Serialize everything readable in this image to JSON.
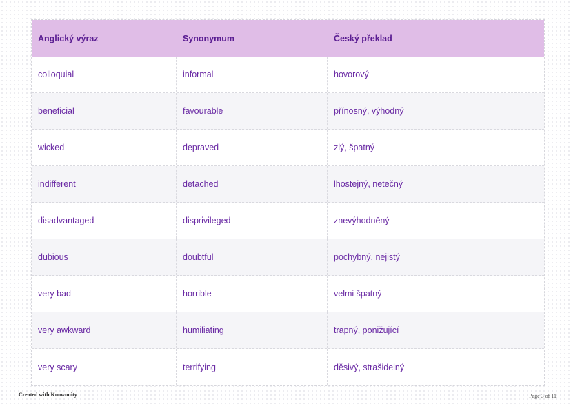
{
  "table": {
    "headers": [
      "Anglický výraz",
      "Synonymum",
      "Český překlad"
    ],
    "rows": [
      [
        "colloquial",
        "informal",
        "hovorový"
      ],
      [
        "beneficial",
        "favourable",
        "přínosný, výhodný"
      ],
      [
        "wicked",
        "depraved",
        "zlý, špatný"
      ],
      [
        "indifferent",
        "detached",
        "lhostejný, netečný"
      ],
      [
        "disadvantaged",
        "disprivileged",
        "znevýhodněný"
      ],
      [
        "dubious",
        "doubtful",
        "pochybný, nejistý"
      ],
      [
        "very bad",
        "horrible",
        "velmi špatný"
      ],
      [
        "very awkward",
        "humiliating",
        "trapný, ponižující"
      ],
      [
        "very scary",
        "terrifying",
        "děsivý, strašidelný"
      ]
    ]
  },
  "footer": {
    "credit": "Created with Knowunity",
    "page": "Page 3 of 11"
  },
  "colors": {
    "header_bg": "#e0bde7",
    "text": "#6a2aa4",
    "alt_row_bg": "#f5f5f8"
  }
}
